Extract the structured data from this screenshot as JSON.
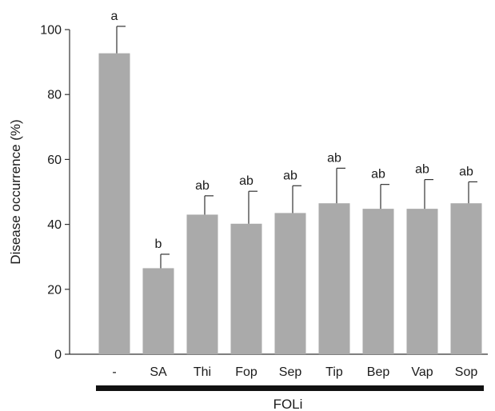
{
  "chart_data": {
    "type": "bar",
    "ylabel": "Disease occurrence (%)",
    "ylim": [
      0,
      100
    ],
    "yticks": [
      0,
      20,
      40,
      60,
      80,
      100
    ],
    "categories": [
      "-",
      "SA",
      "Thi",
      "Fop",
      "Sep",
      "Tip",
      "Bep",
      "Vap",
      "Sop"
    ],
    "values": [
      92.7,
      26.5,
      43.0,
      40.2,
      43.5,
      46.5,
      44.8,
      44.8,
      46.5
    ],
    "errors": [
      8.3,
      4.3,
      5.8,
      10.0,
      8.4,
      10.8,
      7.5,
      9.0,
      6.6
    ],
    "significance": [
      "a",
      "b",
      "ab",
      "ab",
      "ab",
      "ab",
      "ab",
      "ab",
      "ab"
    ],
    "group_label": "FOLi",
    "bar_color": "#aaaaaa",
    "grid": false
  }
}
